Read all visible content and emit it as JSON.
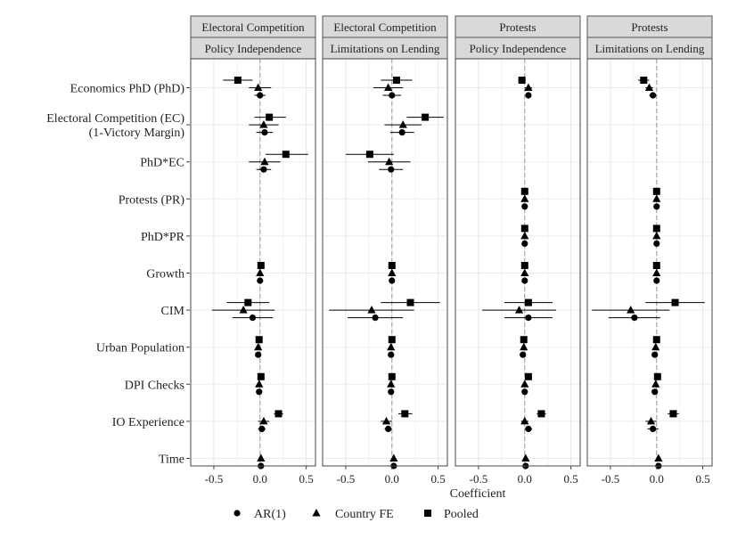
{
  "chart_data": {
    "type": "scatter",
    "variant": "coefficient-plot-with-confidence-intervals",
    "xlabel": "Coefficient",
    "xlim": [
      -0.75,
      0.6
    ],
    "x_ticks": [
      -0.5,
      0.0,
      0.5
    ],
    "x_tick_labels": [
      "-0.5",
      "0.0",
      "0.5"
    ],
    "grid": true,
    "reference_line_x": 0,
    "legend_placement": "bottom",
    "row_labels": [
      [
        "Economics PhD (PhD)"
      ],
      [
        "Electoral Competition (EC)",
        "(1-Victory Margin)"
      ],
      [
        "PhD*EC"
      ],
      [
        "Protests (PR)"
      ],
      [
        "PhD*PR"
      ],
      [
        "Growth"
      ],
      [
        "CIM"
      ],
      [
        "Urban Population"
      ],
      [
        "DPI Checks"
      ],
      [
        "IO Experience"
      ],
      [
        "Time"
      ]
    ],
    "series": [
      {
        "name": "Pooled",
        "marker": "square"
      },
      {
        "name": "Country FE",
        "marker": "triangle"
      },
      {
        "name": "AR(1)",
        "marker": "circle"
      }
    ],
    "legend_order": [
      "AR(1)",
      "Country FE",
      "Pooled"
    ],
    "panels": [
      {
        "strip_top": "Electoral Competition",
        "strip_bottom": "Policy Independence",
        "rows": [
          [
            [
              -0.24,
              -0.4,
              -0.08
            ],
            [
              -0.02,
              -0.12,
              0.12
            ],
            [
              0.0,
              -0.06,
              0.06
            ]
          ],
          [
            [
              0.1,
              -0.06,
              0.28
            ],
            [
              0.04,
              -0.12,
              0.2
            ],
            [
              0.05,
              -0.04,
              0.14
            ]
          ],
          [
            [
              0.28,
              0.06,
              0.52
            ],
            [
              0.05,
              -0.12,
              0.22
            ],
            [
              0.04,
              -0.04,
              0.12
            ]
          ],
          null,
          null,
          [
            [
              0.01,
              -0.01,
              0.03
            ],
            [
              0.0,
              -0.02,
              0.02
            ],
            [
              0.0,
              -0.02,
              0.02
            ]
          ],
          [
            [
              -0.13,
              -0.36,
              0.1
            ],
            [
              -0.18,
              -0.52,
              0.16
            ],
            [
              -0.08,
              -0.3,
              0.14
            ]
          ],
          [
            [
              -0.01,
              -0.03,
              0.01
            ],
            [
              -0.02,
              -0.04,
              0.0
            ],
            [
              -0.02,
              -0.04,
              0.0
            ]
          ],
          [
            [
              0.01,
              -0.01,
              0.03
            ],
            [
              -0.01,
              -0.03,
              0.01
            ],
            [
              -0.01,
              -0.03,
              0.01
            ]
          ],
          [
            [
              0.2,
              0.15,
              0.25
            ],
            [
              0.04,
              -0.02,
              0.1
            ],
            [
              0.02,
              -0.02,
              0.06
            ]
          ],
          [
            null,
            [
              0.01,
              -0.01,
              0.03
            ],
            [
              0.01,
              -0.01,
              0.03
            ]
          ]
        ]
      },
      {
        "strip_top": "Electoral Competition",
        "strip_bottom": "Limitations on Lending",
        "rows": [
          [
            [
              0.05,
              -0.12,
              0.22
            ],
            [
              -0.04,
              -0.2,
              0.12
            ],
            [
              0.0,
              -0.1,
              0.1
            ]
          ],
          [
            [
              0.36,
              0.16,
              0.56
            ],
            [
              0.12,
              -0.08,
              0.32
            ],
            [
              0.11,
              -0.02,
              0.24
            ]
          ],
          [
            [
              -0.24,
              -0.5,
              0.02
            ],
            [
              -0.03,
              -0.26,
              0.2
            ],
            [
              -0.01,
              -0.14,
              0.12
            ]
          ],
          null,
          null,
          [
            [
              0.0,
              -0.02,
              0.02
            ],
            [
              0.0,
              -0.02,
              0.02
            ],
            [
              0.0,
              -0.02,
              0.02
            ]
          ],
          [
            [
              0.2,
              -0.12,
              0.52
            ],
            [
              -0.22,
              -0.68,
              0.24
            ],
            [
              -0.18,
              -0.48,
              0.12
            ]
          ],
          [
            [
              0.0,
              -0.02,
              0.02
            ],
            [
              -0.01,
              -0.03,
              0.01
            ],
            [
              -0.01,
              -0.03,
              0.01
            ]
          ],
          [
            [
              0.0,
              -0.02,
              0.02
            ],
            [
              -0.01,
              -0.03,
              0.01
            ],
            [
              -0.01,
              -0.03,
              0.01
            ]
          ],
          [
            [
              0.14,
              0.07,
              0.22
            ],
            [
              -0.06,
              -0.12,
              0.0
            ],
            [
              -0.04,
              -0.08,
              0.0
            ]
          ],
          [
            null,
            [
              0.02,
              0.0,
              0.04
            ],
            [
              0.02,
              0.0,
              0.04
            ]
          ]
        ]
      },
      {
        "strip_top": "Protests",
        "strip_bottom": "Policy Independence",
        "rows": [
          [
            [
              -0.03,
              -0.07,
              0.01
            ],
            [
              0.04,
              0.0,
              0.08
            ],
            [
              0.04,
              0.01,
              0.07
            ]
          ],
          null,
          null,
          [
            [
              0.0,
              -0.01,
              0.01
            ],
            [
              0.0,
              -0.01,
              0.01
            ],
            [
              0.0,
              -0.01,
              0.01
            ]
          ],
          [
            [
              0.0,
              -0.01,
              0.01
            ],
            [
              0.0,
              -0.01,
              0.01
            ],
            [
              0.0,
              -0.01,
              0.01
            ]
          ],
          [
            [
              0.0,
              -0.01,
              0.01
            ],
            [
              0.0,
              -0.01,
              0.01
            ],
            [
              0.0,
              -0.01,
              0.01
            ]
          ],
          [
            [
              0.04,
              -0.22,
              0.3
            ],
            [
              -0.06,
              -0.46,
              0.34
            ],
            [
              0.04,
              -0.22,
              0.3
            ]
          ],
          [
            [
              -0.01,
              -0.02,
              0.0
            ],
            [
              -0.01,
              -0.03,
              0.01
            ],
            [
              -0.02,
              -0.04,
              0.0
            ]
          ],
          [
            [
              0.04,
              0.02,
              0.06
            ],
            [
              0.0,
              -0.02,
              0.02
            ],
            [
              0.0,
              -0.02,
              0.02
            ]
          ],
          [
            [
              0.18,
              0.13,
              0.23
            ],
            [
              0.0,
              -0.04,
              0.04
            ],
            [
              0.04,
              0.0,
              0.08
            ]
          ],
          [
            null,
            [
              0.01,
              -0.01,
              0.03
            ],
            [
              0.01,
              -0.01,
              0.03
            ]
          ]
        ]
      },
      {
        "strip_top": "Protests",
        "strip_bottom": "Limitations on Lending",
        "rows": [
          [
            [
              -0.14,
              -0.2,
              -0.08
            ],
            [
              -0.08,
              -0.12,
              -0.04
            ],
            [
              -0.04,
              -0.08,
              0.0
            ]
          ],
          null,
          null,
          [
            [
              0.0,
              -0.01,
              0.01
            ],
            [
              0.0,
              -0.01,
              0.01
            ],
            [
              0.0,
              -0.01,
              0.01
            ]
          ],
          [
            [
              0.0,
              -0.01,
              0.01
            ],
            [
              0.0,
              -0.01,
              0.01
            ],
            [
              0.0,
              -0.01,
              0.01
            ]
          ],
          [
            [
              0.0,
              -0.01,
              0.01
            ],
            [
              0.0,
              -0.01,
              0.01
            ],
            [
              0.0,
              -0.01,
              0.01
            ]
          ],
          [
            [
              0.2,
              -0.12,
              0.52
            ],
            [
              -0.28,
              -0.7,
              0.14
            ],
            [
              -0.24,
              -0.52,
              0.04
            ]
          ],
          [
            [
              0.0,
              -0.01,
              0.01
            ],
            [
              -0.01,
              -0.03,
              0.01
            ],
            [
              -0.02,
              -0.04,
              0.0
            ]
          ],
          [
            [
              0.01,
              -0.01,
              0.03
            ],
            [
              -0.01,
              -0.03,
              0.01
            ],
            [
              -0.02,
              -0.04,
              0.0
            ]
          ],
          [
            [
              0.18,
              0.12,
              0.24
            ],
            [
              -0.06,
              -0.12,
              0.0
            ],
            [
              -0.04,
              -0.1,
              0.02
            ]
          ],
          [
            null,
            [
              0.02,
              0.0,
              0.04
            ],
            [
              0.02,
              0.0,
              0.04
            ]
          ]
        ]
      }
    ]
  }
}
